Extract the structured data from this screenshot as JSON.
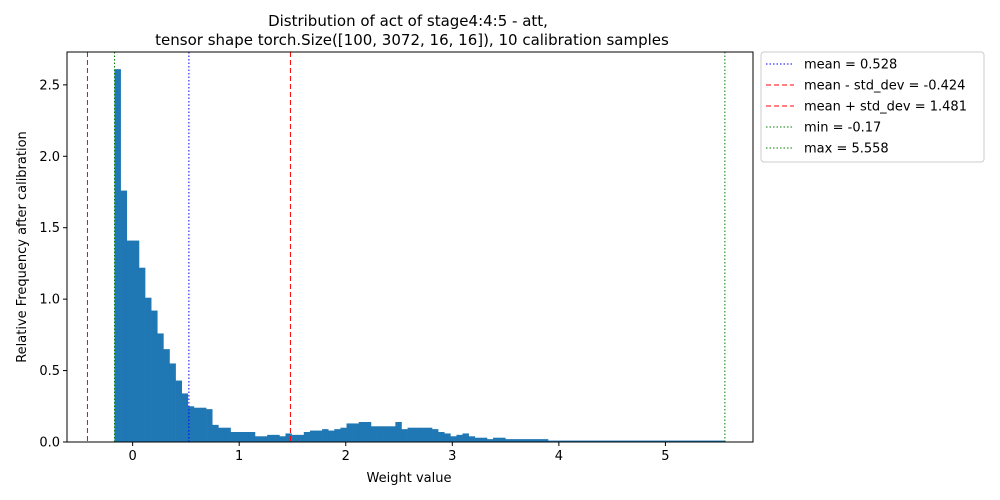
{
  "chart_data": {
    "type": "bar",
    "title_lines": [
      "Distribution of act of stage4:4:5 - att,",
      "tensor shape torch.Size([100, 3072, 16, 16]), 10 calibration samples"
    ],
    "xlabel": "Weight value",
    "ylabel": "Relative Frequency after calibration",
    "xlim": [
      -0.616,
      5.822
    ],
    "ylim": [
      0,
      2.73
    ],
    "x_ticks": [
      0,
      1,
      2,
      3,
      4,
      5
    ],
    "y_ticks": [
      0.0,
      0.5,
      1.0,
      1.5,
      2.0,
      2.5
    ],
    "bar_color": "#1f77b4",
    "hist": {
      "start": -0.17,
      "bin_width": 0.0573,
      "values": [
        2.61,
        1.76,
        1.41,
        1.41,
        1.22,
        1.01,
        0.92,
        0.76,
        0.65,
        0.55,
        0.43,
        0.34,
        0.25,
        0.24,
        0.24,
        0.23,
        0.12,
        0.1,
        0.1,
        0.07,
        0.07,
        0.07,
        0.07,
        0.04,
        0.04,
        0.05,
        0.05,
        0.04,
        0.06,
        0.05,
        0.05,
        0.07,
        0.08,
        0.08,
        0.09,
        0.08,
        0.09,
        0.1,
        0.13,
        0.13,
        0.14,
        0.14,
        0.11,
        0.11,
        0.11,
        0.11,
        0.14,
        0.09,
        0.1,
        0.1,
        0.1,
        0.1,
        0.09,
        0.07,
        0.06,
        0.04,
        0.05,
        0.06,
        0.04,
        0.03,
        0.03,
        0.02,
        0.03,
        0.03,
        0.02,
        0.02,
        0.02,
        0.02,
        0.02,
        0.02,
        0.02,
        0.01,
        0.01,
        0.01,
        0.01,
        0.01,
        0.01,
        0.01,
        0.01,
        0.01,
        0.01,
        0.01,
        0.01,
        0.01,
        0.01,
        0.01,
        0.01,
        0.01,
        0.01,
        0.01,
        0.01,
        0.01,
        0.01,
        0.01,
        0.01,
        0.01,
        0.01,
        0.01,
        0.01,
        0.01
      ]
    },
    "vlines": [
      {
        "name": "mean-line",
        "value": 0.528,
        "color": "#0000ff",
        "style": "dotted",
        "label": "mean = 0.528"
      },
      {
        "name": "mean-minus-std-line",
        "value": -0.424,
        "color": "#ff0000",
        "style": "dashed",
        "label": "mean - std_dev = -0.424"
      },
      {
        "name": "mean-plus-std-line",
        "value": 1.481,
        "color": "#ff0000",
        "style": "dashed",
        "label": "mean + std_dev = 1.481"
      },
      {
        "name": "min-line",
        "value": -0.17,
        "color": "#008000",
        "style": "dotted",
        "label": "min = -0.17"
      },
      {
        "name": "max-line",
        "value": 5.558,
        "color": "#008000",
        "style": "dotted",
        "label": "max = 5.558"
      }
    ],
    "legend_position": "outside-upper-right",
    "grid": false
  }
}
